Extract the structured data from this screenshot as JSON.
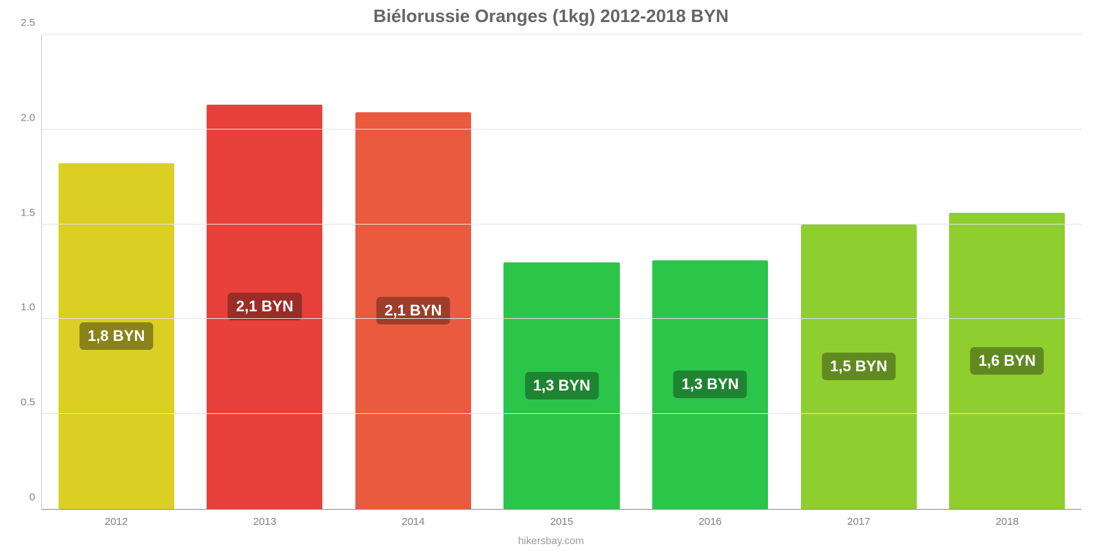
{
  "chart": {
    "type": "bar",
    "title": "Biélorussie Oranges (1kg) 2012-2018 BYN",
    "title_color": "#666666",
    "title_fontsize": 26,
    "background_color": "#ffffff",
    "grid_color": "#e4e4e4",
    "axis_color": "#c9c9c9",
    "tick_label_color": "#808080",
    "tick_label_fontsize": 15,
    "bar_width": 0.78,
    "ylim": [
      0,
      2.5
    ],
    "ytick_step": 0.5,
    "yticks": [
      {
        "v": 0,
        "label": "0"
      },
      {
        "v": 0.5,
        "label": "0.5"
      },
      {
        "v": 1.0,
        "label": "1.0"
      },
      {
        "v": 1.5,
        "label": "1.5"
      },
      {
        "v": 2.0,
        "label": "2.0"
      },
      {
        "v": 2.5,
        "label": "2.5"
      }
    ],
    "categories": [
      "2012",
      "2013",
      "2014",
      "2015",
      "2016",
      "2017",
      "2018"
    ],
    "values": [
      1.82,
      2.13,
      2.09,
      1.3,
      1.31,
      1.5,
      1.56
    ],
    "bar_colors": [
      "#dbcf24",
      "#e8403a",
      "#ea5a3f",
      "#2bc549",
      "#2bc549",
      "#8fce2f",
      "#8fce2f"
    ],
    "value_labels": [
      "1,8 BYN",
      "2,1 BYN",
      "2,1 BYN",
      "1,3 BYN",
      "1,3 BYN",
      "1,5 BYN",
      "1,6 BYN"
    ],
    "value_label_bg": [
      "#8a821a",
      "#9c2c28",
      "#9e3d2b",
      "#1f8432",
      "#1f8432",
      "#608a21",
      "#608a21"
    ],
    "value_label_color": "#ffffff",
    "value_label_fontsize": 22,
    "attribution": "hikersbay.com",
    "attribution_color": "#9a9a9a"
  }
}
